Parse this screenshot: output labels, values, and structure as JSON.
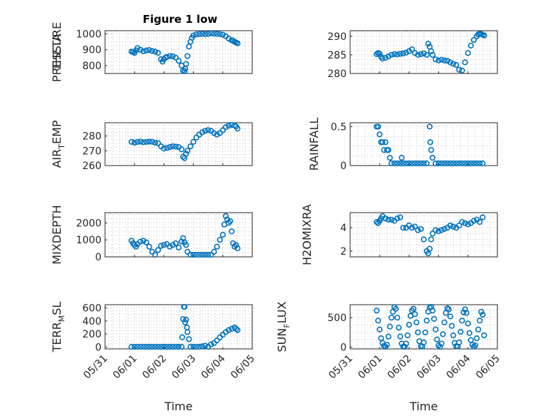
{
  "figure": {
    "title": "Figure 1 low",
    "marker_color": "#0072bd",
    "grid": "on"
  },
  "x_ticks": [
    "05/31",
    "06/01",
    "06/02",
    "06/03",
    "06/04",
    "06/05"
  ],
  "x_label": "Time",
  "chart_data": [
    {
      "type": "scatter",
      "ylabel": "PRESSURE",
      "ylim": [
        750,
        1020
      ],
      "yticks": [
        "800",
        "900",
        "1000"
      ],
      "title": "Figure 1 low",
      "xlabel": "",
      "x_range": [
        "05/31",
        "06/05"
      ],
      "series": [
        {
          "x_days": [
            0.9,
            0.95,
            1.0,
            1.05,
            1.1,
            1.2,
            1.3,
            1.4,
            1.5,
            1.6,
            1.7,
            1.8,
            1.9,
            1.95,
            2.0,
            2.05,
            2.1,
            2.2,
            2.3,
            2.4,
            2.5,
            2.6,
            2.65,
            2.7,
            2.72,
            2.75,
            2.8,
            2.85,
            2.9,
            2.95,
            3.0,
            3.1,
            3.2,
            3.3,
            3.4,
            3.5,
            3.6,
            3.7,
            3.8,
            3.9,
            4.0,
            4.1,
            4.2,
            4.3,
            4.35,
            4.4,
            4.45,
            4.5
          ],
          "values": [
            888,
            885,
            880,
            895,
            910,
            900,
            890,
            895,
            898,
            892,
            888,
            880,
            840,
            825,
            840,
            850,
            855,
            860,
            858,
            850,
            830,
            800,
            770,
            760,
            780,
            810,
            860,
            920,
            950,
            975,
            990,
            997,
            999,
            1000,
            998,
            1000,
            1003,
            1002,
            1000,
            998,
            995,
            985,
            970,
            960,
            955,
            950,
            945,
            940
          ]
        }
      ]
    },
    {
      "type": "scatter",
      "ylabel": "THETA",
      "ylim": [
        280,
        291.5
      ],
      "yticks": [
        "280",
        "285",
        "290"
      ],
      "xlabel": "",
      "x_range": [
        "05/31",
        "06/05"
      ],
      "series": [
        {
          "x_days": [
            0.9,
            0.95,
            1.0,
            1.05,
            1.1,
            1.2,
            1.3,
            1.4,
            1.5,
            1.6,
            1.7,
            1.8,
            1.9,
            2.0,
            2.1,
            2.2,
            2.3,
            2.4,
            2.5,
            2.6,
            2.65,
            2.7,
            2.75,
            2.8,
            2.9,
            3.0,
            3.1,
            3.2,
            3.3,
            3.4,
            3.5,
            3.6,
            3.7,
            3.8,
            3.9,
            4.0,
            4.1,
            4.2,
            4.3,
            4.35,
            4.4,
            4.45,
            4.5,
            4.55
          ],
          "values": [
            285.2,
            285.5,
            285.3,
            284.5,
            284.0,
            284.2,
            284.6,
            285.0,
            285.2,
            285.1,
            285.3,
            285.4,
            285.6,
            286.0,
            286.5,
            285.5,
            285.0,
            285.2,
            285.4,
            285.0,
            288.0,
            287.2,
            286.0,
            285.0,
            283.8,
            283.5,
            283.7,
            283.5,
            283.4,
            283.0,
            282.6,
            282.3,
            281.0,
            280.8,
            283.0,
            285.5,
            287.5,
            289.0,
            290.0,
            290.5,
            290.7,
            290.6,
            290.4,
            290.2
          ]
        }
      ]
    },
    {
      "type": "scatter",
      "ylabel": "AIR_TEMP",
      "ylim": [
        260,
        289
      ],
      "yticks": [
        "260",
        "270",
        "280"
      ],
      "xlabel": "",
      "x_range": [
        "05/31",
        "06/05"
      ],
      "series": [
        {
          "x_days": [
            0.9,
            1.0,
            1.1,
            1.2,
            1.3,
            1.4,
            1.5,
            1.6,
            1.7,
            1.8,
            1.9,
            2.0,
            2.1,
            2.2,
            2.3,
            2.4,
            2.5,
            2.6,
            2.65,
            2.7,
            2.75,
            2.8,
            2.9,
            3.0,
            3.1,
            3.2,
            3.3,
            3.4,
            3.5,
            3.6,
            3.7,
            3.8,
            3.9,
            4.0,
            4.1,
            4.2,
            4.3,
            4.4,
            4.45,
            4.5
          ],
          "values": [
            276,
            275.5,
            276,
            276.2,
            275.8,
            276,
            276.2,
            276.1,
            275.5,
            275.2,
            273,
            271.5,
            272,
            272.5,
            273,
            272.8,
            272.5,
            271,
            266,
            265,
            268,
            270,
            273,
            276,
            279,
            281,
            282.5,
            283.5,
            284,
            283.5,
            282,
            281,
            282,
            284,
            286,
            287,
            287.5,
            287.2,
            286.5,
            285
          ]
        }
      ]
    },
    {
      "type": "scatter",
      "ylabel": "RAINFALL",
      "ylim": [
        0,
        0.55
      ],
      "yticks": [
        "0",
        "0.5"
      ],
      "xlabel": "",
      "x_range": [
        "05/31",
        "06/05"
      ],
      "series": [
        {
          "x_days": [
            0.9,
            0.95,
            1.0,
            1.05,
            1.1,
            1.15,
            1.2,
            1.25,
            1.3,
            1.35,
            1.4,
            1.5,
            1.6,
            1.7,
            1.75,
            1.8,
            1.9,
            2.0,
            2.1,
            2.2,
            2.3,
            2.4,
            2.5,
            2.6,
            2.7,
            2.72,
            2.75,
            2.8,
            2.9,
            3.0,
            3.1,
            3.2,
            3.3,
            3.4,
            3.5,
            3.6,
            3.7,
            3.8,
            3.9,
            4.0,
            4.1,
            4.2,
            4.3,
            4.4,
            4.5
          ],
          "values": [
            0.5,
            0.5,
            0.4,
            0.3,
            0.3,
            0.2,
            0.3,
            0.2,
            0.2,
            0.1,
            0.0,
            0.0,
            0.0,
            0.0,
            0.1,
            0.0,
            0.0,
            0.0,
            0.0,
            0.0,
            0.0,
            0.0,
            0.0,
            0.0,
            0.5,
            0.3,
            0.2,
            0.1,
            0.0,
            0.0,
            0.0,
            0.0,
            0.0,
            0.0,
            0.0,
            0.0,
            0.0,
            0.0,
            0.0,
            0.0,
            0.0,
            0.0,
            0.0,
            0.0,
            0.0
          ]
        }
      ]
    },
    {
      "type": "scatter",
      "ylabel": "MIXDEPTH",
      "ylim": [
        0,
        2600
      ],
      "yticks": [
        "0",
        "1000",
        "2000"
      ],
      "xlabel": "",
      "x_range": [
        "05/31",
        "06/05"
      ],
      "series": [
        {
          "x_days": [
            0.9,
            0.95,
            1.0,
            1.05,
            1.1,
            1.2,
            1.3,
            1.4,
            1.5,
            1.6,
            1.7,
            1.8,
            1.9,
            2.0,
            2.1,
            2.2,
            2.3,
            2.4,
            2.5,
            2.6,
            2.65,
            2.7,
            2.75,
            2.8,
            2.9,
            3.0,
            3.1,
            3.2,
            3.3,
            3.4,
            3.5,
            3.6,
            3.7,
            3.8,
            3.9,
            4.0,
            4.05,
            4.1,
            4.15,
            4.2,
            4.25,
            4.3,
            4.35,
            4.4,
            4.45,
            4.5
          ],
          "values": [
            950,
            800,
            700,
            600,
            750,
            900,
            950,
            850,
            600,
            300,
            100,
            400,
            650,
            700,
            750,
            600,
            700,
            800,
            550,
            900,
            1100,
            850,
            700,
            300,
            100,
            50,
            80,
            100,
            120,
            90,
            100,
            80,
            300,
            600,
            1000,
            1300,
            1900,
            2400,
            2200,
            2000,
            2100,
            1500,
            800,
            600,
            700,
            500
          ]
        }
      ]
    },
    {
      "type": "scatter",
      "ylabel": "H2OMIXRA",
      "ylim": [
        1.5,
        5.3
      ],
      "yticks": [
        "2",
        "4"
      ],
      "xlabel": "",
      "x_range": [
        "05/31",
        "06/05"
      ],
      "series": [
        {
          "x_days": [
            0.9,
            0.95,
            1.0,
            1.05,
            1.1,
            1.2,
            1.3,
            1.4,
            1.5,
            1.6,
            1.7,
            1.8,
            1.9,
            2.0,
            2.1,
            2.2,
            2.3,
            2.4,
            2.5,
            2.6,
            2.65,
            2.7,
            2.75,
            2.8,
            2.9,
            3.0,
            3.1,
            3.2,
            3.3,
            3.4,
            3.5,
            3.6,
            3.7,
            3.8,
            3.9,
            4.0,
            4.1,
            4.2,
            4.3,
            4.4,
            4.5
          ],
          "values": [
            4.5,
            4.4,
            4.6,
            4.8,
            5.0,
            4.8,
            4.7,
            4.7,
            4.6,
            4.8,
            4.9,
            4.0,
            4.0,
            4.2,
            4.0,
            4.1,
            3.8,
            3.9,
            3.0,
            2.0,
            1.8,
            2.2,
            3.0,
            3.5,
            3.8,
            3.7,
            3.8,
            3.9,
            4.0,
            4.2,
            4.1,
            4.0,
            4.2,
            4.5,
            4.4,
            4.3,
            4.4,
            4.6,
            4.7,
            4.5,
            4.9
          ]
        }
      ]
    },
    {
      "type": "scatter",
      "ylabel": "TERR_MSL",
      "ylim": [
        -30,
        650
      ],
      "yticks": [
        "0",
        "200",
        "400",
        "600"
      ],
      "xlabel": "Time",
      "x_range": [
        "05/31",
        "06/05"
      ],
      "series": [
        {
          "x_days": [
            0.9,
            1.0,
            1.1,
            1.2,
            1.3,
            1.4,
            1.5,
            1.6,
            1.7,
            1.8,
            1.9,
            2.0,
            2.1,
            2.2,
            2.3,
            2.4,
            2.5,
            2.6,
            2.62,
            2.65,
            2.68,
            2.7,
            2.72,
            2.75,
            2.78,
            2.8,
            2.85,
            2.9,
            3.0,
            3.1,
            3.2,
            3.3,
            3.4,
            3.5,
            3.6,
            3.7,
            3.8,
            3.9,
            4.0,
            4.1,
            4.2,
            4.3,
            4.4,
            4.45,
            4.5
          ],
          "values": [
            0,
            0,
            0,
            0,
            0,
            0,
            0,
            0,
            0,
            0,
            0,
            0,
            0,
            0,
            0,
            0,
            0,
            0,
            150,
            430,
            620,
            620,
            380,
            420,
            300,
            230,
            120,
            0,
            0,
            0,
            0,
            10,
            20,
            0,
            40,
            60,
            100,
            150,
            190,
            230,
            260,
            280,
            300,
            280,
            260
          ]
        }
      ]
    },
    {
      "type": "scatter",
      "ylabel": "SUN_FLUX",
      "ylim": [
        -30,
        720
      ],
      "yticks": [
        "0",
        "500"
      ],
      "xlabel": "Time",
      "x_range": [
        "05/31",
        "06/05"
      ],
      "series": [
        {
          "x_days": [
            0.9,
            0.95,
            1.0,
            1.05,
            1.1,
            1.15,
            1.2,
            1.25,
            1.3,
            1.35,
            1.4,
            1.45,
            1.5,
            1.55,
            1.6,
            1.65,
            1.7,
            1.75,
            1.8,
            1.85,
            1.9,
            1.95,
            2.0,
            2.05,
            2.1,
            2.15,
            2.2,
            2.25,
            2.3,
            2.35,
            2.4,
            2.45,
            2.5,
            2.55,
            2.6,
            2.65,
            2.7,
            2.75,
            2.8,
            2.85,
            2.9,
            2.95,
            3.0,
            3.05,
            3.1,
            3.15,
            3.2,
            3.25,
            3.3,
            3.35,
            3.4,
            3.45,
            3.5,
            3.55,
            3.6,
            3.65,
            3.7,
            3.75,
            3.8,
            3.85,
            3.9,
            3.95,
            4.0,
            4.05,
            4.1,
            4.15,
            4.2,
            4.25,
            4.3,
            4.35,
            4.4,
            4.45,
            4.5,
            4.55
          ],
          "values": [
            620,
            450,
            300,
            150,
            70,
            20,
            5,
            40,
            180,
            350,
            500,
            600,
            680,
            650,
            500,
            330,
            180,
            60,
            10,
            5,
            60,
            200,
            380,
            530,
            620,
            650,
            560,
            420,
            250,
            100,
            20,
            10,
            80,
            250,
            450,
            600,
            670,
            700,
            620,
            480,
            300,
            130,
            30,
            5,
            60,
            220,
            420,
            580,
            660,
            640,
            520,
            360,
            200,
            70,
            15,
            10,
            80,
            260,
            450,
            590,
            640,
            580,
            400,
            240,
            120,
            40,
            10,
            30,
            150,
            300,
            450,
            600,
            550,
            200
          ]
        }
      ]
    }
  ]
}
